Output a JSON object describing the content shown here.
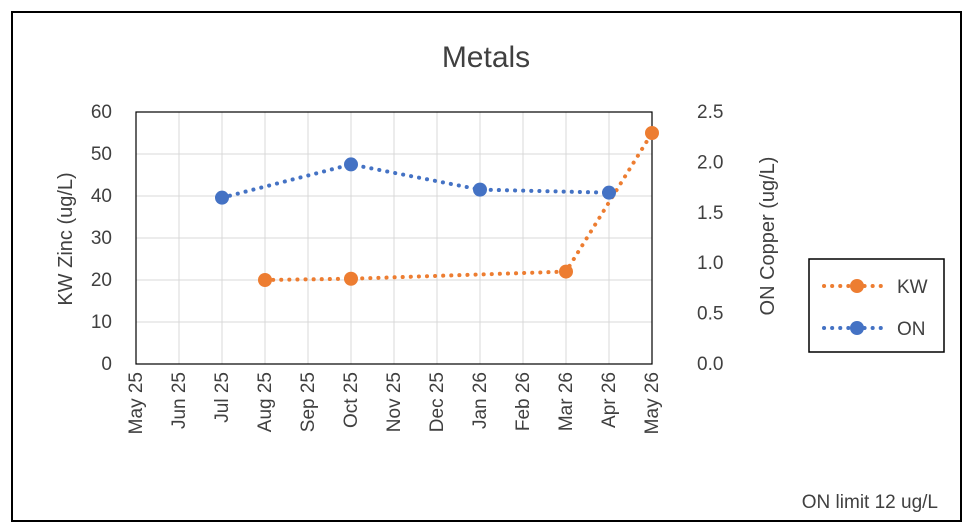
{
  "chart_data": {
    "type": "line",
    "title": "Metals",
    "x": [
      "May 25",
      "Jun 25",
      "Jul 25",
      "Aug 25",
      "Sep 25",
      "Oct 25",
      "Nov 25",
      "Dec 25",
      "Jan 26",
      "Feb 26",
      "Mar 26",
      "Apr 26",
      "May 26"
    ],
    "ylabel_left": "KW Zinc (ug/L)",
    "ylabel_right": "ON Copper (ug/L)",
    "ylim_left": [
      0,
      60
    ],
    "ylim_right": [
      0,
      2.5
    ],
    "yticks_left": [
      "0",
      "10",
      "20",
      "30",
      "40",
      "50",
      "60"
    ],
    "yticks_right": [
      "0.0",
      "0.5",
      "1.0",
      "1.5",
      "2.0",
      "2.5"
    ],
    "grid": true,
    "legend": "right",
    "series": [
      {
        "name": "KW",
        "axis": "left",
        "color": "#ED7D31",
        "points": [
          {
            "x": "Aug 25",
            "y": 20
          },
          {
            "x": "Oct 25",
            "y": 20.3
          },
          {
            "x": "Mar 26",
            "y": 22
          },
          {
            "x": "May 26",
            "y": 55
          }
        ]
      },
      {
        "name": "ON",
        "axis": "right",
        "color": "#4472C4",
        "points": [
          {
            "x": "Jul 25",
            "y": 1.65
          },
          {
            "x": "Oct 25",
            "y": 1.98
          },
          {
            "x": "Jan 26",
            "y": 1.73
          },
          {
            "x": "Apr 26",
            "y": 1.7
          }
        ]
      }
    ],
    "annotation": "ON limit 12 ug/L"
  }
}
